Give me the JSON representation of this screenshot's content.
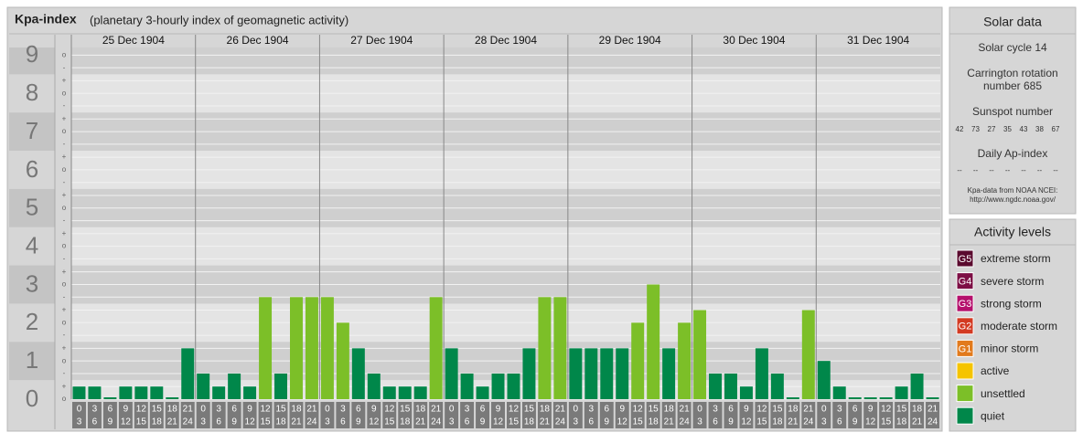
{
  "chart_data": {
    "type": "bar",
    "title": "Kpa-index",
    "subtitle": "(planetary 3-hourly index of geomagnetic activity)",
    "days": [
      "25 Dec 1904",
      "26 Dec 1904",
      "27 Dec 1904",
      "28 Dec 1904",
      "29 Dec 1904",
      "30 Dec 1904",
      "31 Dec 1904"
    ],
    "hour_labels": [
      [
        "0",
        "3"
      ],
      [
        "3",
        "6"
      ],
      [
        "6",
        "9"
      ],
      [
        "9",
        "12"
      ],
      [
        "12",
        "15"
      ],
      [
        "15",
        "18"
      ],
      [
        "18",
        "21"
      ],
      [
        "21",
        "24"
      ]
    ],
    "values": [
      0.33,
      0.33,
      0,
      0.33,
      0.33,
      0.33,
      0,
      1.33,
      0.67,
      0.33,
      0.67,
      0.33,
      2.67,
      0.67,
      2.67,
      2.67,
      2.67,
      2,
      1.33,
      0.67,
      0.33,
      0.33,
      0.33,
      2.67,
      1.33,
      0.67,
      0.33,
      0.67,
      0.67,
      1.33,
      2.67,
      2.67,
      1.33,
      1.33,
      1.33,
      1.33,
      2,
      3,
      1.33,
      2,
      2.33,
      0.67,
      0.67,
      0.33,
      1.33,
      0.67,
      0,
      2.33,
      1,
      0.33,
      0,
      0,
      0,
      0.33,
      0.67,
      0
    ],
    "colors": [
      "#00874a",
      "#00874a",
      "#00874a",
      "#00874a",
      "#00874a",
      "#00874a",
      "#00874a",
      "#00874a",
      "#00874a",
      "#00874a",
      "#00874a",
      "#00874a",
      "#7cbf28",
      "#00874a",
      "#7cbf28",
      "#7cbf28",
      "#7cbf28",
      "#7cbf28",
      "#00874a",
      "#00874a",
      "#00874a",
      "#00874a",
      "#00874a",
      "#7cbf28",
      "#00874a",
      "#00874a",
      "#00874a",
      "#00874a",
      "#00874a",
      "#00874a",
      "#7cbf28",
      "#7cbf28",
      "#00874a",
      "#00874a",
      "#00874a",
      "#00874a",
      "#7cbf28",
      "#7cbf28",
      "#00874a",
      "#7cbf28",
      "#7cbf28",
      "#00874a",
      "#00874a",
      "#00874a",
      "#00874a",
      "#00874a",
      "#00874a",
      "#7cbf28",
      "#00874a",
      "#00874a",
      "#00874a",
      "#00874a",
      "#00874a",
      "#00874a",
      "#00874a",
      "#00874a"
    ],
    "ylim": [
      0,
      9.2
    ],
    "yticks": [
      0,
      1,
      2,
      3,
      4,
      5,
      6,
      7,
      8,
      9
    ],
    "minor_ticks": [
      {
        "value": 0,
        "label": "o"
      },
      {
        "value": 0.33,
        "label": "+"
      },
      {
        "value": 0.67,
        "label": "-"
      },
      {
        "value": 1,
        "label": "o"
      },
      {
        "value": 1.33,
        "label": "+"
      },
      {
        "value": 1.67,
        "label": "-"
      },
      {
        "value": 2,
        "label": "o"
      },
      {
        "value": 2.33,
        "label": "+"
      },
      {
        "value": 2.67,
        "label": "-"
      },
      {
        "value": 3,
        "label": "o"
      },
      {
        "value": 3.33,
        "label": "+"
      },
      {
        "value": 3.67,
        "label": "-"
      },
      {
        "value": 4,
        "label": "o"
      },
      {
        "value": 4.33,
        "label": "+"
      },
      {
        "value": 4.67,
        "label": "-"
      },
      {
        "value": 5,
        "label": "o"
      },
      {
        "value": 5.33,
        "label": "+"
      },
      {
        "value": 5.67,
        "label": "-"
      },
      {
        "value": 6,
        "label": "o"
      },
      {
        "value": 6.33,
        "label": "+"
      },
      {
        "value": 6.67,
        "label": "-"
      },
      {
        "value": 7,
        "label": "o"
      },
      {
        "value": 7.33,
        "label": "+"
      },
      {
        "value": 7.67,
        "label": "-"
      },
      {
        "value": 8,
        "label": "o"
      },
      {
        "value": 8.33,
        "label": "+"
      },
      {
        "value": 8.67,
        "label": "-"
      },
      {
        "value": 9,
        "label": "o"
      }
    ],
    "grid": true
  },
  "solar_data": {
    "title": "Solar data",
    "cycle": "Solar cycle 14",
    "rotation": [
      "Carrington rotation",
      "number 685"
    ],
    "sunspot_title": "Sunspot number",
    "sunspots": [
      "42",
      "73",
      "27",
      "35",
      "43",
      "38",
      "67"
    ],
    "ap_title": "Daily Ap-index",
    "ap": [
      "--",
      "--",
      "--",
      "--",
      "--",
      "--",
      "--"
    ],
    "source": [
      "Kpa-data from NOAA NCEI:",
      "http://www.ngdc.noaa.gov/"
    ]
  },
  "activity_levels": {
    "title": "Activity levels",
    "items": [
      {
        "badge": "G5",
        "label": "extreme storm",
        "color": "#5a0a2e"
      },
      {
        "badge": "G4",
        "label": "severe storm",
        "color": "#7d0f45"
      },
      {
        "badge": "G3",
        "label": "strong storm",
        "color": "#b5106c"
      },
      {
        "badge": "G2",
        "label": "moderate storm",
        "color": "#d33a22"
      },
      {
        "badge": "G1",
        "label": "minor storm",
        "color": "#e27a1c"
      },
      {
        "label": "active",
        "color": "#f5c400"
      },
      {
        "label": "unsettled",
        "color": "#7cbf28"
      },
      {
        "label": "quiet",
        "color": "#00874a"
      }
    ]
  }
}
